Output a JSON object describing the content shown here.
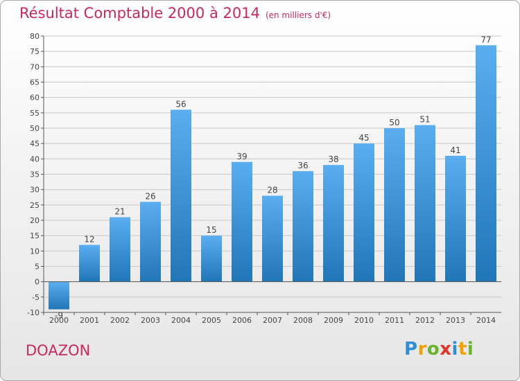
{
  "header": {
    "title": "Résultat Comptable 2000 à 2014",
    "unit": "(en milliers d'€)"
  },
  "commune": "DOAZON",
  "brand": {
    "letters": [
      {
        "ch": "P",
        "color": "#2f8fd6"
      },
      {
        "ch": "r",
        "color": "#f2a200"
      },
      {
        "ch": "o",
        "color": "#6ab42d"
      },
      {
        "ch": "x",
        "color": "#e6332a"
      },
      {
        "ch": "i",
        "color": "#2f8fd6"
      },
      {
        "ch": "t",
        "color": "#f2a200"
      },
      {
        "ch": "i",
        "color": "#6ab42d"
      }
    ]
  },
  "colors": {
    "title": "#c8285a",
    "bar_light": "#5aaef0",
    "bar_dark": "#2176b8",
    "grid": "#c8c8c8",
    "axis": "#555555",
    "text": "#444444"
  },
  "chart_data": {
    "type": "bar",
    "title": "Résultat Comptable 2000 à 2014",
    "subtitle": "(en milliers d'€)",
    "categories": [
      "2000",
      "2001",
      "2002",
      "2003",
      "2004",
      "2005",
      "2006",
      "2007",
      "2008",
      "2009",
      "2010",
      "2011",
      "2012",
      "2013",
      "2014"
    ],
    "values": [
      -9,
      12,
      21,
      26,
      56,
      15,
      39,
      28,
      36,
      38,
      45,
      50,
      51,
      41,
      77
    ],
    "data_labels": [
      "-9",
      "12",
      "21",
      "26",
      "56",
      "15",
      "39",
      "28",
      "36",
      "38",
      "45",
      "50",
      "51",
      "41",
      "77"
    ],
    "ylim": [
      -10,
      80
    ],
    "yticks": [
      -10,
      -5,
      0,
      5,
      10,
      15,
      20,
      25,
      30,
      35,
      40,
      45,
      50,
      55,
      60,
      65,
      70,
      75,
      80
    ],
    "grid": true,
    "xlabel": "",
    "ylabel": ""
  }
}
